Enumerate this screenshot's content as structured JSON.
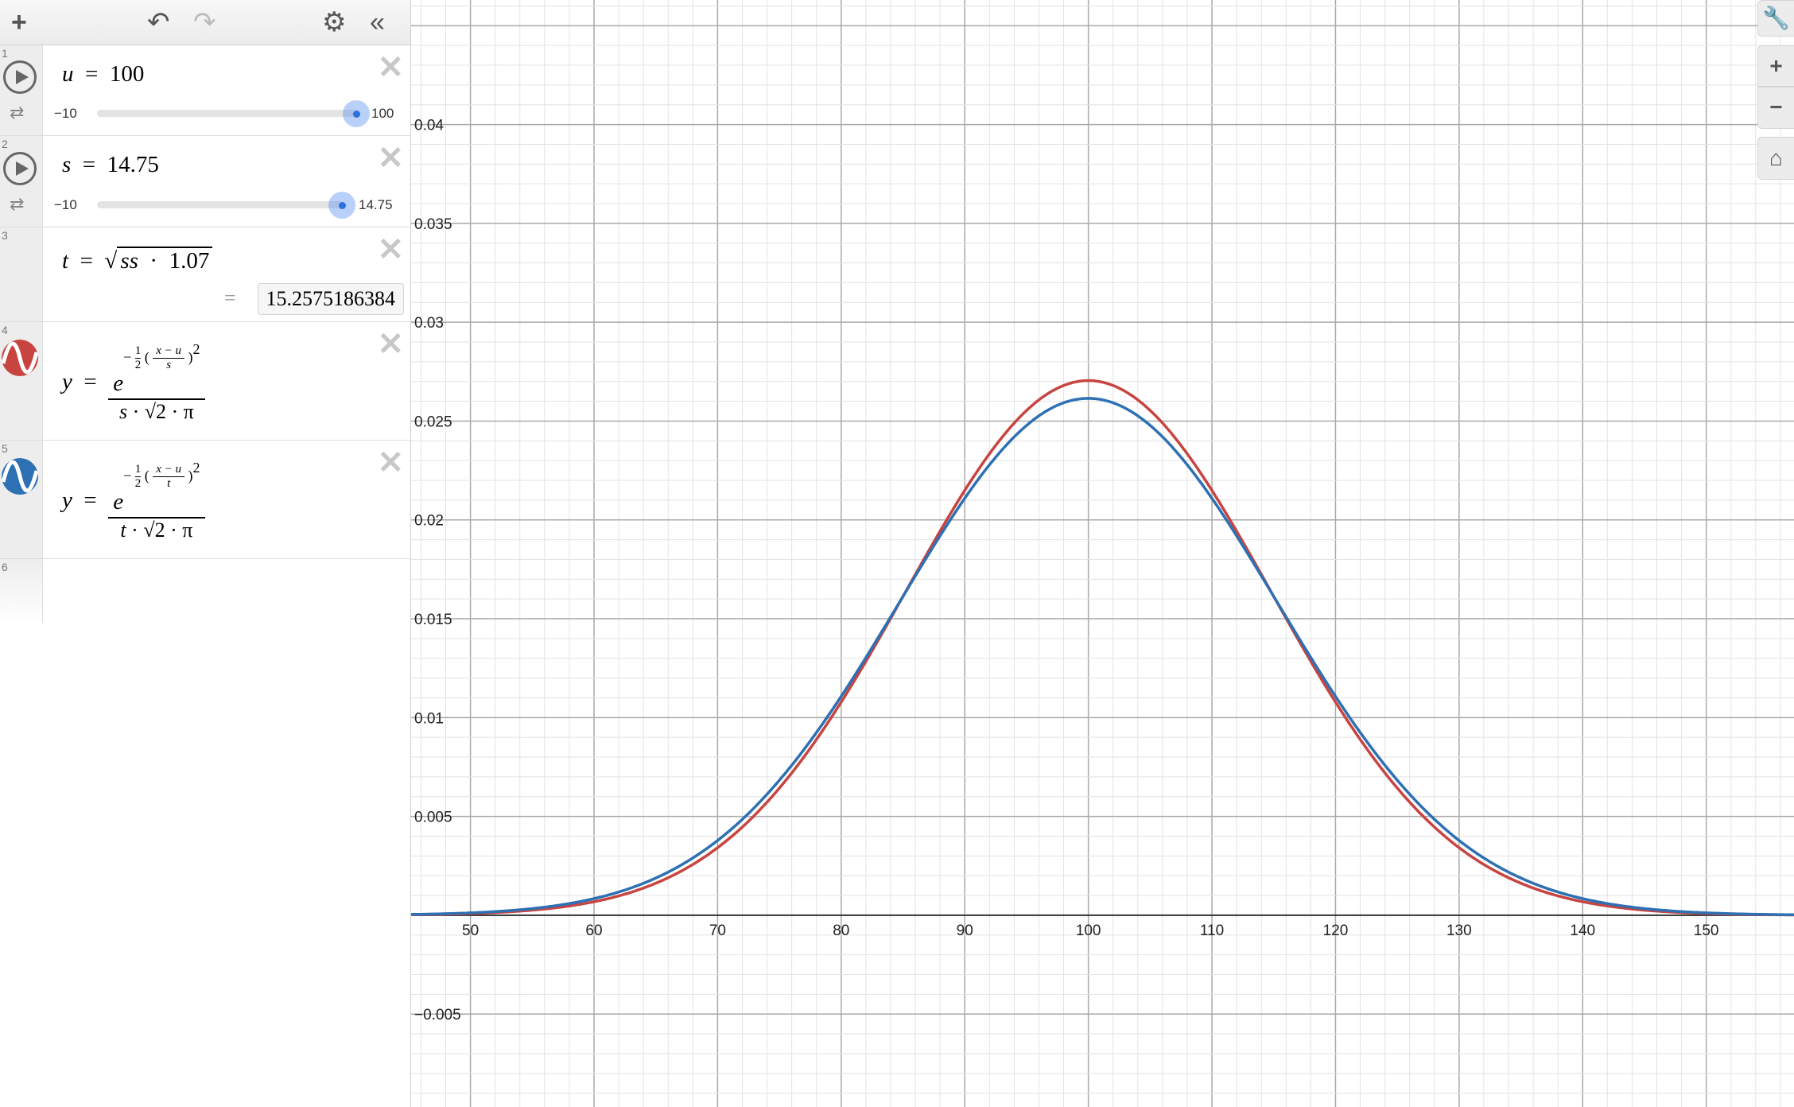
{
  "toolbar": {
    "add": "+",
    "undo": "↶",
    "redo": "↷",
    "settings": "⚙",
    "collapse": "«"
  },
  "expressions": [
    {
      "index": "1",
      "var": "u",
      "eq": "=",
      "value": "100",
      "slider_min": "−10",
      "slider_max": "100",
      "fraction": 1.0
    },
    {
      "index": "2",
      "var": "s",
      "eq": "=",
      "value": "14.75",
      "slider_min": "−10",
      "slider_max": "14.75",
      "fraction": 1.0
    },
    {
      "index": "3",
      "var": "t",
      "eq": "=",
      "radicand": "ss",
      "dot": "·",
      "factor": "1.07",
      "result_eq": "=",
      "result": "15.2575186384"
    },
    {
      "index": "4",
      "color": "#c74440",
      "y": "y",
      "eq": "=",
      "e": "e",
      "exp_sign": "−",
      "half_n": "1",
      "half_d": "2",
      "inner_n": "x − u",
      "inner_d": "s",
      "power": "2",
      "den_var": "s",
      "den_rest": "2 · π"
    },
    {
      "index": "5",
      "color": "#2d70b3",
      "y": "y",
      "eq": "=",
      "e": "e",
      "exp_sign": "−",
      "half_n": "1",
      "half_d": "2",
      "inner_n": "x − u",
      "inner_d": "t",
      "power": "2",
      "den_var": "t",
      "den_rest": "2 · π"
    },
    {
      "index": "6"
    }
  ],
  "graph_controls": {
    "wrench": "wrench-icon",
    "zoom_in": "+",
    "zoom_out": "−",
    "home": "home-icon"
  },
  "chart_data": {
    "type": "line",
    "xlim": [
      45.2,
      157.1
    ],
    "ylim": [
      -0.0097,
      0.0463
    ],
    "grid": true,
    "x_ticks": [
      "50",
      "60",
      "70",
      "80",
      "90",
      "100",
      "110",
      "120",
      "130",
      "140",
      "150"
    ],
    "y_ticks": [
      "0.04",
      "0.035",
      "0.03",
      "0.025",
      "0.02",
      "0.015",
      "0.01",
      "0.005",
      "-0.005"
    ],
    "series": [
      {
        "formula": "normal pdf",
        "mean": 100,
        "sd": 14.75,
        "peak": 0.02705,
        "color": "#c74440"
      },
      {
        "formula": "normal pdf",
        "mean": 100,
        "sd": 15.2575186384,
        "peak": 0.02615,
        "color": "#2d70b3"
      }
    ]
  }
}
